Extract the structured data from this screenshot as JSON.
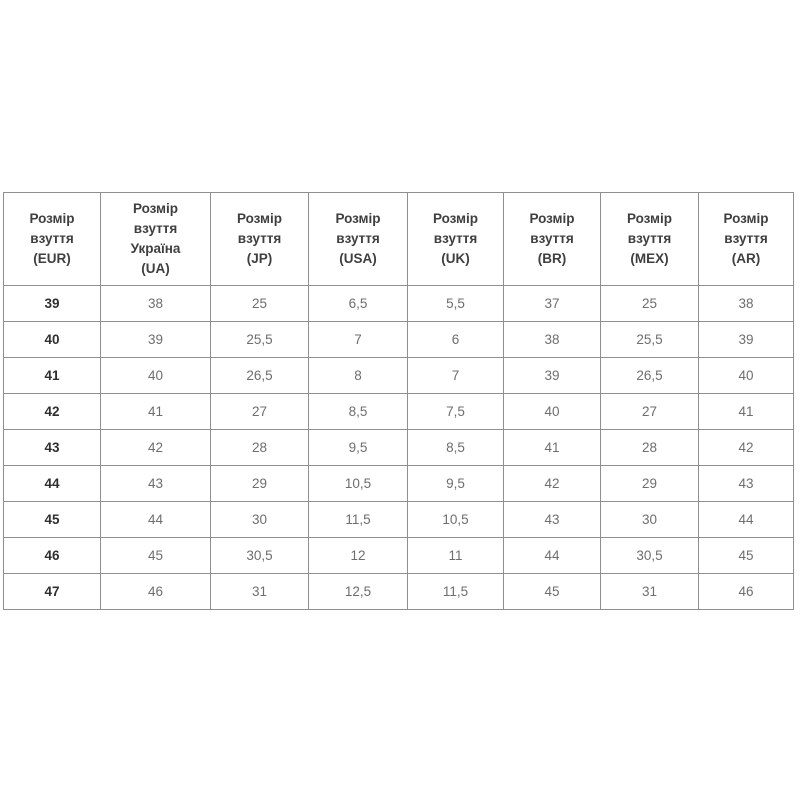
{
  "page": {
    "background_color": "#ffffff"
  },
  "colors": {
    "table_border": "#8f8f8f",
    "header_text": "#3f3f3f",
    "first_column_text": "#2f2f2f",
    "cell_text": "#6e6e6e"
  },
  "chart_data": {
    "type": "table",
    "columns": [
      {
        "id": "eur",
        "header_lines": [
          "Розмір",
          "взуття",
          "(EUR)"
        ],
        "header": "Розмір взуття (EUR)"
      },
      {
        "id": "ua",
        "header_lines": [
          "Розмір",
          "взуття",
          "Україна",
          "(UA)"
        ],
        "header": "Розмір взуття Україна (UA)"
      },
      {
        "id": "jp",
        "header_lines": [
          "Розмір",
          "взуття",
          "(JP)"
        ],
        "header": "Розмір взуття (JP)"
      },
      {
        "id": "usa",
        "header_lines": [
          "Розмір",
          "взуття",
          "(USA)"
        ],
        "header": "Розмір взуття (USA)"
      },
      {
        "id": "uk",
        "header_lines": [
          "Розмір",
          "взуття",
          "(UK)"
        ],
        "header": "Розмір взуття (UK)"
      },
      {
        "id": "br",
        "header_lines": [
          "Розмір",
          "взуття",
          "(BR)"
        ],
        "header": "Розмір взуття (BR)"
      },
      {
        "id": "mex",
        "header_lines": [
          "Розмір",
          "взуття",
          "(MEX)"
        ],
        "header": "Розмір взуття (MEX)"
      },
      {
        "id": "ar",
        "header_lines": [
          "Розмір",
          "взуття",
          "(AR)"
        ],
        "header": "Розмір взуття (AR)"
      }
    ],
    "rows": [
      [
        "39",
        "38",
        "25",
        "6,5",
        "5,5",
        "37",
        "25",
        "38"
      ],
      [
        "40",
        "39",
        "25,5",
        "7",
        "6",
        "38",
        "25,5",
        "39"
      ],
      [
        "41",
        "40",
        "26,5",
        "8",
        "7",
        "39",
        "26,5",
        "40"
      ],
      [
        "42",
        "41",
        "27",
        "8,5",
        "7,5",
        "40",
        "27",
        "41"
      ],
      [
        "43",
        "42",
        "28",
        "9,5",
        "8,5",
        "41",
        "28",
        "42"
      ],
      [
        "44",
        "43",
        "29",
        "10,5",
        "9,5",
        "42",
        "29",
        "43"
      ],
      [
        "45",
        "44",
        "30",
        "11,5",
        "10,5",
        "43",
        "30",
        "44"
      ],
      [
        "46",
        "45",
        "30,5",
        "12",
        "11",
        "44",
        "30,5",
        "45"
      ],
      [
        "47",
        "46",
        "31",
        "12,5",
        "11,5",
        "45",
        "31",
        "46"
      ]
    ]
  }
}
